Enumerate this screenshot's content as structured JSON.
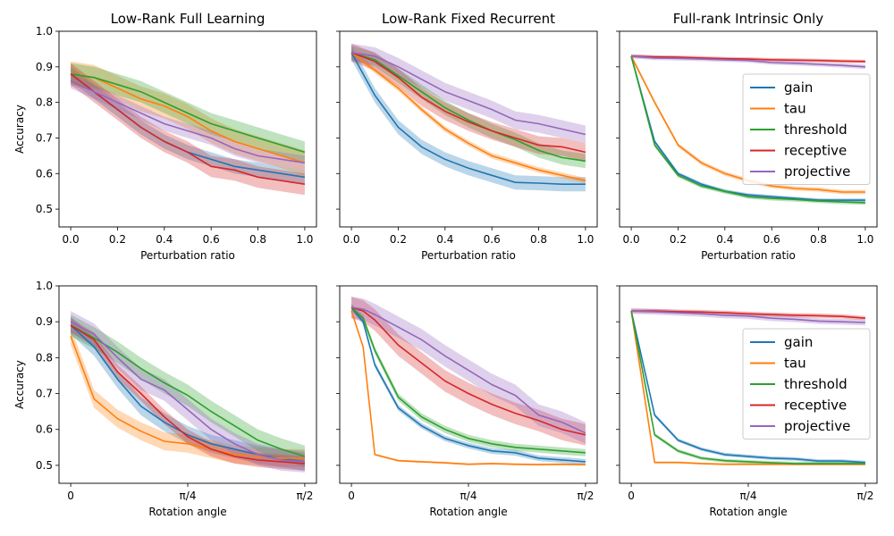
{
  "chart_data": [
    {
      "type": "line",
      "title": "Low-Rank Full Learning",
      "xlabel": "Perturbation ratio",
      "ylabel": "Accuracy",
      "xlim": [
        -0.05,
        1.05
      ],
      "ylim": [
        0.45,
        1.0
      ],
      "xticks": [
        {
          "v": 0.0,
          "label": "0.0"
        },
        {
          "v": 0.2,
          "label": "0.2"
        },
        {
          "v": 0.4,
          "label": "0.4"
        },
        {
          "v": 0.6,
          "label": "0.6"
        },
        {
          "v": 0.8,
          "label": "0.8"
        },
        {
          "v": 1.0,
          "label": "1.0"
        }
      ],
      "yticks": [
        {
          "v": 0.5,
          "label": "0.5"
        },
        {
          "v": 0.6,
          "label": "0.6"
        },
        {
          "v": 0.7,
          "label": "0.7"
        },
        {
          "v": 0.8,
          "label": "0.8"
        },
        {
          "v": 0.9,
          "label": "0.9"
        },
        {
          "v": 1.0,
          "label": "1.0"
        }
      ],
      "show_ytick_labels": true,
      "x": [
        0,
        0.1,
        0.2,
        0.3,
        0.4,
        0.5,
        0.6,
        0.7,
        0.8,
        0.9,
        1.0
      ],
      "series": [
        {
          "name": "gain",
          "color": "#1f77b4",
          "values": [
            0.88,
            0.83,
            0.78,
            0.73,
            0.69,
            0.66,
            0.64,
            0.62,
            0.61,
            0.6,
            0.59
          ],
          "band": 0.02
        },
        {
          "name": "tau",
          "color": "#ff7f0e",
          "values": [
            0.88,
            0.87,
            0.84,
            0.81,
            0.79,
            0.76,
            0.72,
            0.69,
            0.67,
            0.65,
            0.63
          ],
          "band": 0.035
        },
        {
          "name": "threshold",
          "color": "#2ca02c",
          "values": [
            0.88,
            0.87,
            0.85,
            0.83,
            0.8,
            0.77,
            0.74,
            0.72,
            0.7,
            0.68,
            0.66
          ],
          "band": 0.03
        },
        {
          "name": "receptive",
          "color": "#d62728",
          "values": [
            0.88,
            0.83,
            0.78,
            0.73,
            0.69,
            0.66,
            0.62,
            0.61,
            0.59,
            0.58,
            0.57
          ],
          "band": 0.03
        },
        {
          "name": "projective",
          "color": "#9467bd",
          "values": [
            0.86,
            0.83,
            0.8,
            0.77,
            0.74,
            0.72,
            0.7,
            0.67,
            0.65,
            0.64,
            0.63
          ],
          "band": 0.02
        }
      ]
    },
    {
      "type": "line",
      "title": "Low-Rank Fixed Recurrent",
      "xlabel": "Perturbation ratio",
      "ylabel": "",
      "xlim": [
        -0.05,
        1.05
      ],
      "ylim": [
        0.45,
        1.0
      ],
      "xticks": [
        {
          "v": 0.0,
          "label": "0.0"
        },
        {
          "v": 0.2,
          "label": "0.2"
        },
        {
          "v": 0.4,
          "label": "0.4"
        },
        {
          "v": 0.6,
          "label": "0.6"
        },
        {
          "v": 0.8,
          "label": "0.8"
        },
        {
          "v": 1.0,
          "label": "1.0"
        }
      ],
      "yticks": [
        {
          "v": 0.5,
          "label": ""
        },
        {
          "v": 0.6,
          "label": ""
        },
        {
          "v": 0.7,
          "label": ""
        },
        {
          "v": 0.8,
          "label": ""
        },
        {
          "v": 0.9,
          "label": ""
        },
        {
          "v": 1.0,
          "label": ""
        }
      ],
      "show_ytick_labels": false,
      "x": [
        0,
        0.1,
        0.2,
        0.3,
        0.4,
        0.5,
        0.6,
        0.7,
        0.8,
        0.9,
        1.0
      ],
      "series": [
        {
          "name": "gain",
          "color": "#1f77b4",
          "values": [
            0.94,
            0.82,
            0.73,
            0.675,
            0.64,
            0.615,
            0.595,
            0.575,
            0.573,
            0.57,
            0.57
          ],
          "band": 0.02
        },
        {
          "name": "tau",
          "color": "#ff7f0e",
          "values": [
            0.94,
            0.89,
            0.84,
            0.78,
            0.725,
            0.685,
            0.65,
            0.63,
            0.61,
            0.595,
            0.58
          ],
          "band": 0.008
        },
        {
          "name": "threshold",
          "color": "#2ca02c",
          "values": [
            0.94,
            0.92,
            0.875,
            0.83,
            0.785,
            0.75,
            0.72,
            0.695,
            0.665,
            0.645,
            0.635
          ],
          "band": 0.02
        },
        {
          "name": "receptive",
          "color": "#d62728",
          "values": [
            0.94,
            0.915,
            0.87,
            0.815,
            0.775,
            0.745,
            0.72,
            0.7,
            0.68,
            0.675,
            0.66
          ],
          "band": 0.025
        },
        {
          "name": "projective",
          "color": "#9467bd",
          "values": [
            0.94,
            0.93,
            0.9,
            0.865,
            0.83,
            0.805,
            0.78,
            0.75,
            0.74,
            0.725,
            0.71
          ],
          "band": 0.025
        }
      ]
    },
    {
      "type": "line",
      "title": "Full-rank Intrinsic Only",
      "xlabel": "Perturbation ratio",
      "ylabel": "",
      "xlim": [
        -0.05,
        1.05
      ],
      "ylim": [
        0.45,
        1.0
      ],
      "xticks": [
        {
          "v": 0.0,
          "label": "0.0"
        },
        {
          "v": 0.2,
          "label": "0.2"
        },
        {
          "v": 0.4,
          "label": "0.4"
        },
        {
          "v": 0.6,
          "label": "0.6"
        },
        {
          "v": 0.8,
          "label": "0.8"
        },
        {
          "v": 1.0,
          "label": "1.0"
        }
      ],
      "yticks": [
        {
          "v": 0.5,
          "label": ""
        },
        {
          "v": 0.6,
          "label": ""
        },
        {
          "v": 0.7,
          "label": ""
        },
        {
          "v": 0.8,
          "label": ""
        },
        {
          "v": 0.9,
          "label": ""
        },
        {
          "v": 1.0,
          "label": ""
        }
      ],
      "show_ytick_labels": false,
      "legend": "right",
      "x": [
        0,
        0.1,
        0.2,
        0.3,
        0.4,
        0.5,
        0.6,
        0.7,
        0.8,
        0.9,
        1.0
      ],
      "series": [
        {
          "name": "gain",
          "color": "#1f77b4",
          "values": [
            0.93,
            0.69,
            0.6,
            0.57,
            0.55,
            0.54,
            0.535,
            0.53,
            0.525,
            0.525,
            0.525
          ],
          "band": 0.005
        },
        {
          "name": "tau",
          "color": "#ff7f0e",
          "values": [
            0.93,
            0.8,
            0.68,
            0.63,
            0.6,
            0.58,
            0.565,
            0.558,
            0.555,
            0.548,
            0.548
          ],
          "band": 0.006
        },
        {
          "name": "threshold",
          "color": "#2ca02c",
          "values": [
            0.93,
            0.68,
            0.595,
            0.565,
            0.55,
            0.535,
            0.53,
            0.527,
            0.523,
            0.52,
            0.518
          ],
          "band": 0.006
        },
        {
          "name": "receptive",
          "color": "#d62728",
          "values": [
            0.93,
            0.928,
            0.927,
            0.925,
            0.923,
            0.922,
            0.92,
            0.919,
            0.918,
            0.916,
            0.915
          ],
          "band": 0.005
        },
        {
          "name": "projective",
          "color": "#9467bd",
          "values": [
            0.93,
            0.925,
            0.924,
            0.922,
            0.92,
            0.918,
            0.912,
            0.91,
            0.907,
            0.904,
            0.9
          ],
          "band": 0.006
        }
      ]
    },
    {
      "type": "line",
      "title": "",
      "xlabel": "Rotation angle",
      "ylabel": "Accuracy",
      "xlim": [
        -0.0393,
        0.8247
      ],
      "ylim": [
        0.45,
        1.0
      ],
      "xticks": [
        {
          "v": 0.0,
          "label": "0"
        },
        {
          "v": 0.3927,
          "label": "π/4"
        },
        {
          "v": 0.7854,
          "label": "π/2"
        }
      ],
      "yticks": [
        {
          "v": 0.5,
          "label": "0.5"
        },
        {
          "v": 0.6,
          "label": "0.6"
        },
        {
          "v": 0.7,
          "label": "0.7"
        },
        {
          "v": 0.8,
          "label": "0.8"
        },
        {
          "v": 0.9,
          "label": "0.9"
        },
        {
          "v": 1.0,
          "label": "1.0"
        }
      ],
      "show_ytick_labels": true,
      "x": [
        0,
        0.0785,
        0.1571,
        0.2356,
        0.3142,
        0.3927,
        0.4712,
        0.5498,
        0.6283,
        0.7069,
        0.7854
      ],
      "series": [
        {
          "name": "gain",
          "color": "#1f77b4",
          "values": [
            0.89,
            0.83,
            0.74,
            0.665,
            0.62,
            0.585,
            0.56,
            0.545,
            0.53,
            0.52,
            0.51
          ],
          "band": 0.025
        },
        {
          "name": "tau",
          "color": "#ff7f0e",
          "values": [
            0.86,
            0.685,
            0.63,
            0.595,
            0.567,
            0.56,
            0.545,
            0.53,
            0.525,
            0.52,
            0.52
          ],
          "band": 0.025
        },
        {
          "name": "threshold",
          "color": "#2ca02c",
          "values": [
            0.89,
            0.855,
            0.815,
            0.77,
            0.73,
            0.695,
            0.65,
            0.61,
            0.57,
            0.545,
            0.525
          ],
          "band": 0.03
        },
        {
          "name": "receptive",
          "color": "#d62728",
          "values": [
            0.89,
            0.85,
            0.76,
            0.7,
            0.635,
            0.58,
            0.545,
            0.525,
            0.515,
            0.51,
            0.505
          ],
          "band": 0.02
        },
        {
          "name": "projective",
          "color": "#9467bd",
          "values": [
            0.9,
            0.865,
            0.8,
            0.74,
            0.71,
            0.655,
            0.6,
            0.56,
            0.53,
            0.515,
            0.51
          ],
          "band": 0.03
        }
      ]
    },
    {
      "type": "line",
      "title": "",
      "xlabel": "Rotation angle",
      "ylabel": "",
      "xlim": [
        -0.0393,
        0.8247
      ],
      "ylim": [
        0.45,
        1.0
      ],
      "xticks": [
        {
          "v": 0.0,
          "label": "0"
        },
        {
          "v": 0.3927,
          "label": "π/4"
        },
        {
          "v": 0.7854,
          "label": "π/2"
        }
      ],
      "yticks": [
        {
          "v": 0.5,
          "label": ""
        },
        {
          "v": 0.6,
          "label": ""
        },
        {
          "v": 0.7,
          "label": ""
        },
        {
          "v": 0.8,
          "label": ""
        },
        {
          "v": 0.9,
          "label": ""
        },
        {
          "v": 1.0,
          "label": ""
        }
      ],
      "show_ytick_labels": false,
      "x": [
        0,
        0.0393,
        0.0785,
        0.1571,
        0.2356,
        0.3142,
        0.3927,
        0.4712,
        0.5498,
        0.6283,
        0.7069,
        0.7854
      ],
      "series": [
        {
          "name": "gain",
          "color": "#1f77b4",
          "values": [
            0.94,
            0.9,
            0.78,
            0.66,
            0.61,
            0.575,
            0.555,
            0.54,
            0.535,
            0.52,
            0.515,
            0.51
          ],
          "band": 0.008
        },
        {
          "name": "tau",
          "color": "#ff7f0e",
          "values": [
            0.93,
            0.83,
            0.53,
            0.513,
            0.51,
            0.507,
            0.503,
            0.505,
            0.503,
            0.502,
            0.503,
            0.502
          ],
          "band": 0.003
        },
        {
          "name": "threshold",
          "color": "#2ca02c",
          "values": [
            0.94,
            0.91,
            0.82,
            0.69,
            0.635,
            0.6,
            0.575,
            0.56,
            0.55,
            0.545,
            0.54,
            0.535
          ],
          "band": 0.01
        },
        {
          "name": "receptive",
          "color": "#d62728",
          "values": [
            0.94,
            0.93,
            0.905,
            0.835,
            0.785,
            0.735,
            0.7,
            0.67,
            0.645,
            0.625,
            0.6,
            0.585
          ],
          "band": 0.03
        },
        {
          "name": "projective",
          "color": "#9467bd",
          "values": [
            0.94,
            0.935,
            0.92,
            0.885,
            0.85,
            0.805,
            0.765,
            0.725,
            0.695,
            0.64,
            0.62,
            0.59
          ],
          "band": 0.03
        }
      ]
    },
    {
      "type": "line",
      "title": "",
      "xlabel": "Rotation angle",
      "ylabel": "",
      "xlim": [
        -0.0393,
        0.8247
      ],
      "ylim": [
        0.45,
        1.0
      ],
      "xticks": [
        {
          "v": 0.0,
          "label": "0"
        },
        {
          "v": 0.3927,
          "label": "π/4"
        },
        {
          "v": 0.7854,
          "label": "π/2"
        }
      ],
      "yticks": [
        {
          "v": 0.5,
          "label": ""
        },
        {
          "v": 0.6,
          "label": ""
        },
        {
          "v": 0.7,
          "label": ""
        },
        {
          "v": 0.8,
          "label": ""
        },
        {
          "v": 0.9,
          "label": ""
        },
        {
          "v": 1.0,
          "label": ""
        }
      ],
      "show_ytick_labels": false,
      "legend": "right",
      "x": [
        0,
        0.0785,
        0.1571,
        0.2356,
        0.3142,
        0.3927,
        0.4712,
        0.5498,
        0.6283,
        0.7069,
        0.7854
      ],
      "series": [
        {
          "name": "gain",
          "color": "#1f77b4",
          "values": [
            0.93,
            0.64,
            0.57,
            0.545,
            0.53,
            0.525,
            0.52,
            0.518,
            0.512,
            0.512,
            0.508
          ],
          "band": 0.005
        },
        {
          "name": "tau",
          "color": "#ff7f0e",
          "values": [
            0.93,
            0.508,
            0.508,
            0.505,
            0.503,
            0.503,
            0.503,
            0.503,
            0.503,
            0.503,
            0.503
          ],
          "band": 0.003
        },
        {
          "name": "threshold",
          "color": "#2ca02c",
          "values": [
            0.93,
            0.585,
            0.54,
            0.52,
            0.513,
            0.51,
            0.507,
            0.505,
            0.505,
            0.505,
            0.505
          ],
          "band": 0.005
        },
        {
          "name": "receptive",
          "color": "#d62728",
          "values": [
            0.93,
            0.93,
            0.928,
            0.927,
            0.925,
            0.922,
            0.92,
            0.918,
            0.917,
            0.915,
            0.91
          ],
          "band": 0.006
        },
        {
          "name": "projective",
          "color": "#9467bd",
          "values": [
            0.93,
            0.928,
            0.925,
            0.922,
            0.918,
            0.916,
            0.91,
            0.907,
            0.902,
            0.9,
            0.898
          ],
          "band": 0.008
        }
      ]
    }
  ]
}
